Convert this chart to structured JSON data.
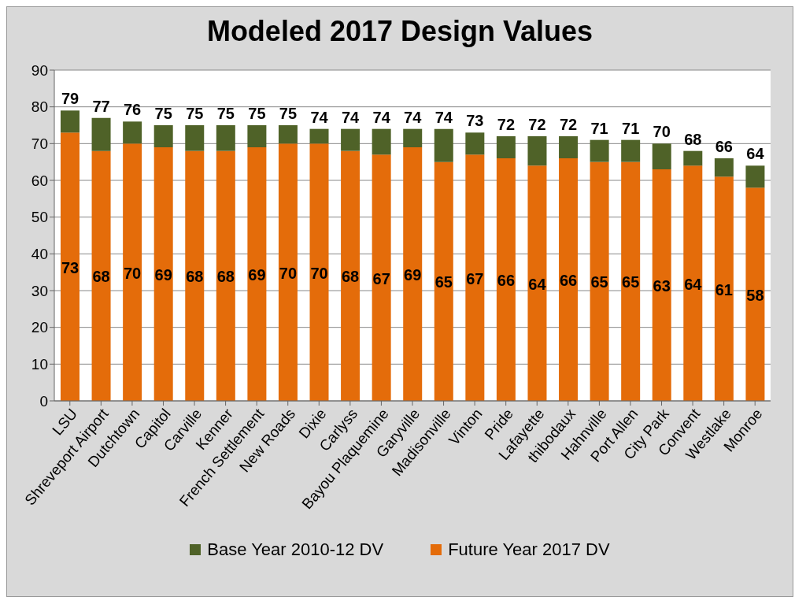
{
  "chart_data": {
    "type": "bar",
    "title": "Modeled 2017 Design Values",
    "stacked": true,
    "categories": [
      "LSU",
      "Shreveport Airport",
      "Dutchtown",
      "Capitol",
      "Carville",
      "Kenner",
      "French Settlement",
      "New Roads",
      "Dixie",
      "Carlyss",
      "Bayou Plaquemine",
      "Garyville",
      "Madisonville",
      "Vinton",
      "Pride",
      "Lafayette",
      "thibodaux",
      "Hahnville",
      "Port Allen",
      "City Park",
      "Convent",
      "Westlake",
      "Monroe"
    ],
    "series": [
      {
        "name": "Future Year 2017 DV",
        "color": "#e46c0a",
        "values": [
          73,
          68,
          70,
          69,
          68,
          68,
          69,
          70,
          70,
          68,
          67,
          69,
          65,
          67,
          66,
          64,
          66,
          65,
          65,
          63,
          64,
          61,
          58
        ],
        "value_labels": [
          "73",
          "68",
          "70",
          "69",
          "68",
          "68",
          "69",
          "70",
          "70",
          "68",
          "67",
          "69",
          "65",
          "67",
          "66",
          "64",
          "66",
          "65",
          "65",
          "63",
          "64",
          "61",
          "58"
        ]
      },
      {
        "name": "Base Year 2010-12 DV",
        "color": "#4f6228",
        "values": [
          6,
          9,
          6,
          6,
          7,
          7,
          6,
          5,
          4,
          6,
          7,
          5,
          9,
          6,
          6,
          8,
          6,
          6,
          6,
          7,
          4,
          5,
          6
        ]
      }
    ],
    "totals": [
      "79",
      "77",
      "76",
      "75",
      "75",
      "75",
      "75",
      "75",
      "74",
      "74",
      "74",
      "74",
      "74",
      "73",
      "72",
      "72",
      "72",
      "71",
      "71",
      "70",
      "68",
      "66",
      "64"
    ],
    "ylim": [
      0,
      90
    ],
    "yticks": [
      0,
      10,
      20,
      30,
      40,
      50,
      60,
      70,
      80,
      90
    ],
    "grid": "y",
    "legend": "bottom"
  }
}
